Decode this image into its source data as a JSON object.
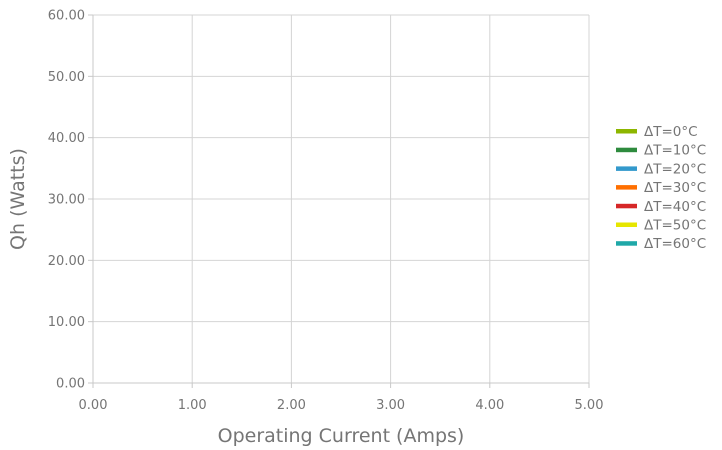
{
  "chart_data": {
    "type": "line",
    "title": "",
    "xlabel": "Operating Current (Amps)",
    "ylabel": "Qh (Watts)",
    "xlim": [
      0,
      5
    ],
    "ylim": [
      0,
      60
    ],
    "x_ticks": [
      "0.00",
      "1.00",
      "2.00",
      "3.00",
      "4.00",
      "5.00"
    ],
    "y_ticks": [
      "0.00",
      "10.00",
      "20.00",
      "30.00",
      "40.00",
      "50.00",
      "60.00"
    ],
    "x_tick_values": [
      0,
      1,
      2,
      3,
      4,
      5
    ],
    "y_tick_values": [
      0,
      10,
      20,
      30,
      40,
      50,
      60
    ],
    "grid": true,
    "legend_position": "right",
    "series": [
      {
        "name": "ΔT=0°C",
        "color": "#8db600",
        "x": [],
        "y": []
      },
      {
        "name": "ΔT=10°C",
        "color": "#2e8b3e",
        "x": [],
        "y": []
      },
      {
        "name": "ΔT=20°C",
        "color": "#3399cc",
        "x": [],
        "y": []
      },
      {
        "name": "ΔT=30°C",
        "color": "#ff6f00",
        "x": [],
        "y": []
      },
      {
        "name": "ΔT=40°C",
        "color": "#d62728",
        "x": [],
        "y": []
      },
      {
        "name": "ΔT=50°C",
        "color": "#e6e600",
        "x": [],
        "y": []
      },
      {
        "name": "ΔT=60°C",
        "color": "#1fa8a8",
        "x": [],
        "y": []
      }
    ]
  }
}
